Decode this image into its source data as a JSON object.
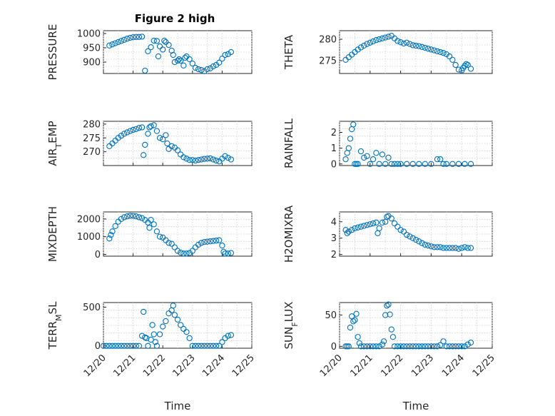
{
  "figure": {
    "title": "Figure 2 high",
    "xlabel": "Time"
  },
  "chart_data": [
    {
      "type": "scatter",
      "name": "PRESSURE",
      "ylabel": "PRESSURE",
      "xlim": [
        0,
        5
      ],
      "ylim": [
        860,
        1010
      ],
      "yticks": [
        900,
        950,
        1000
      ],
      "xticks": [],
      "x": [
        0.2,
        0.3,
        0.4,
        0.5,
        0.6,
        0.7,
        0.8,
        0.9,
        1.0,
        1.1,
        1.2,
        1.3,
        1.4,
        1.5,
        1.6,
        1.7,
        1.8,
        1.85,
        1.9,
        2.0,
        2.05,
        2.1,
        2.2,
        2.3,
        2.35,
        2.4,
        2.5,
        2.55,
        2.6,
        2.7,
        2.75,
        2.8,
        2.9,
        3.0,
        3.1,
        3.2,
        3.3,
        3.4,
        3.5,
        3.6,
        3.7,
        3.8,
        3.9,
        4.0,
        4.1,
        4.2,
        4.3
      ],
      "y": [
        958,
        962,
        966,
        970,
        974,
        978,
        982,
        985,
        987,
        988,
        988,
        989,
        870,
        938,
        952,
        975,
        974,
        920,
        955,
        944,
        975,
        970,
        960,
        940,
        925,
        900,
        905,
        910,
        905,
        888,
        915,
        920,
        910,
        895,
        880,
        875,
        872,
        868,
        875,
        878,
        885,
        890,
        898,
        912,
        925,
        928,
        935
      ]
    },
    {
      "type": "scatter",
      "name": "THETA",
      "ylabel": "THETA",
      "xlim": [
        0,
        5
      ],
      "ylim": [
        272,
        282
      ],
      "yticks": [
        275,
        280
      ],
      "xticks": [],
      "x": [
        0.2,
        0.3,
        0.4,
        0.5,
        0.6,
        0.7,
        0.8,
        0.9,
        1.0,
        1.1,
        1.2,
        1.3,
        1.4,
        1.5,
        1.6,
        1.7,
        1.8,
        1.9,
        2.0,
        2.1,
        2.2,
        2.3,
        2.4,
        2.5,
        2.6,
        2.7,
        2.8,
        2.9,
        3.0,
        3.1,
        3.2,
        3.3,
        3.4,
        3.5,
        3.6,
        3.7,
        3.8,
        3.9,
        4.0,
        4.05,
        4.1,
        4.15,
        4.2,
        4.3
      ],
      "y": [
        275.2,
        275.8,
        276.4,
        277.0,
        277.6,
        278.1,
        278.5,
        278.9,
        279.2,
        279.5,
        279.8,
        280.0,
        280.2,
        280.4,
        280.6,
        280.8,
        280.2,
        279.6,
        279.3,
        279.0,
        279.2,
        278.9,
        278.6,
        278.5,
        278.4,
        278.2,
        278.0,
        277.8,
        277.6,
        277.4,
        277.2,
        277.0,
        276.8,
        276.5,
        276.0,
        275.2,
        274.0,
        272.9,
        272.7,
        273.3,
        273.8,
        274.2,
        274.0,
        273.1
      ]
    },
    {
      "type": "scatter",
      "name": "AIR_TEMP",
      "ylabel": "AIR_TEMP",
      "xlim": [
        0,
        5
      ],
      "ylim": [
        265,
        281
      ],
      "yticks": [
        270,
        275,
        280
      ],
      "xticks": [],
      "x": [
        0.2,
        0.3,
        0.4,
        0.5,
        0.6,
        0.7,
        0.8,
        0.9,
        1.0,
        1.1,
        1.2,
        1.3,
        1.35,
        1.4,
        1.5,
        1.55,
        1.6,
        1.7,
        1.8,
        1.9,
        2.0,
        2.1,
        2.15,
        2.2,
        2.3,
        2.4,
        2.5,
        2.6,
        2.7,
        2.8,
        2.9,
        3.0,
        3.1,
        3.2,
        3.3,
        3.4,
        3.5,
        3.6,
        3.7,
        3.8,
        3.9,
        4.0,
        4.1,
        4.2,
        4.3
      ],
      "y": [
        272.0,
        273.0,
        274.0,
        275.0,
        275.8,
        276.5,
        277.0,
        277.5,
        277.9,
        278.2,
        278.6,
        278.8,
        268.8,
        272.5,
        276.5,
        278.8,
        279.2,
        279.6,
        277.5,
        275.0,
        274.5,
        276.0,
        273.0,
        271.0,
        272.0,
        271.5,
        270.5,
        269.0,
        268.0,
        267.5,
        267.0,
        267.0,
        266.8,
        267.0,
        267.2,
        267.4,
        267.5,
        267.6,
        267.2,
        266.8,
        266.5,
        267.5,
        268.4,
        267.8,
        267.2
      ]
    },
    {
      "type": "scatter",
      "name": "RAINFALL",
      "ylabel": "RAINFALL",
      "xlim": [
        0,
        5
      ],
      "ylim": [
        -0.1,
        2.7
      ],
      "yticks": [
        0,
        1,
        2
      ],
      "xticks": [],
      "x": [
        0.2,
        0.25,
        0.3,
        0.35,
        0.4,
        0.45,
        0.5,
        0.55,
        0.6,
        0.7,
        0.8,
        0.9,
        1.0,
        1.1,
        1.2,
        1.3,
        1.4,
        1.5,
        1.6,
        1.7,
        1.8,
        1.9,
        2.0,
        2.2,
        2.4,
        2.6,
        2.8,
        3.0,
        3.2,
        3.3,
        3.4,
        3.5,
        3.7,
        3.9,
        4.1,
        4.3
      ],
      "y": [
        0.3,
        0.7,
        1.0,
        1.6,
        2.2,
        2.5,
        0,
        0,
        0,
        0.8,
        0.4,
        0.5,
        0,
        0.3,
        0.7,
        0,
        0.6,
        0,
        0.4,
        0,
        0,
        0,
        0,
        0,
        0,
        0,
        0,
        0,
        0.3,
        0.3,
        0,
        0,
        0,
        0,
        0,
        0
      ]
    },
    {
      "type": "scatter",
      "name": "MIXDEPTH",
      "ylabel": "MIXDEPTH",
      "xlim": [
        0,
        5
      ],
      "ylim": [
        -100,
        2400
      ],
      "yticks": [
        0,
        1000,
        2000
      ],
      "xticks": [],
      "x": [
        0.2,
        0.25,
        0.3,
        0.4,
        0.5,
        0.6,
        0.7,
        0.8,
        0.9,
        1.0,
        1.1,
        1.2,
        1.3,
        1.4,
        1.5,
        1.55,
        1.6,
        1.7,
        1.8,
        1.9,
        2.0,
        2.1,
        2.2,
        2.3,
        2.4,
        2.5,
        2.6,
        2.7,
        2.8,
        2.9,
        3.0,
        3.1,
        3.2,
        3.3,
        3.4,
        3.5,
        3.6,
        3.7,
        3.8,
        3.9,
        4.0,
        4.05,
        4.1,
        4.2,
        4.3
      ],
      "y": [
        900,
        1100,
        1300,
        1600,
        1850,
        2000,
        2100,
        2150,
        2180,
        2180,
        2150,
        2100,
        2050,
        1950,
        1800,
        1500,
        1950,
        1700,
        1300,
        1000,
        950,
        800,
        650,
        600,
        400,
        200,
        100,
        50,
        50,
        80,
        200,
        400,
        550,
        650,
        700,
        720,
        740,
        760,
        780,
        800,
        500,
        150,
        50,
        50,
        80
      ]
    },
    {
      "type": "scatter",
      "name": "H2OMIXRA",
      "ylabel": "H2OMIXRA",
      "xlim": [
        0,
        5
      ],
      "ylim": [
        1.9,
        4.6
      ],
      "yticks": [
        2,
        3,
        4
      ],
      "xticks": [],
      "x": [
        0.2,
        0.25,
        0.3,
        0.4,
        0.5,
        0.6,
        0.7,
        0.8,
        0.9,
        1.0,
        1.1,
        1.2,
        1.25,
        1.3,
        1.4,
        1.5,
        1.55,
        1.6,
        1.7,
        1.8,
        1.9,
        2.0,
        2.1,
        2.2,
        2.3,
        2.4,
        2.5,
        2.6,
        2.7,
        2.8,
        2.9,
        3.0,
        3.1,
        3.2,
        3.3,
        3.4,
        3.5,
        3.6,
        3.7,
        3.8,
        3.9,
        4.0,
        4.1,
        4.2,
        4.3
      ],
      "y": [
        3.5,
        3.3,
        3.4,
        3.5,
        3.6,
        3.65,
        3.7,
        3.75,
        3.8,
        3.85,
        3.9,
        3.95,
        3.3,
        3.6,
        3.95,
        4.0,
        4.3,
        4.35,
        4.2,
        3.9,
        3.7,
        3.5,
        3.4,
        3.2,
        3.1,
        3.0,
        2.9,
        2.8,
        2.7,
        2.6,
        2.55,
        2.5,
        2.45,
        2.45,
        2.45,
        2.4,
        2.4,
        2.4,
        2.4,
        2.4,
        2.35,
        2.4,
        2.45,
        2.4,
        2.4
      ]
    },
    {
      "type": "scatter",
      "name": "TERR_MSL",
      "ylabel": "TERR_MSL",
      "xlim": [
        0,
        5
      ],
      "ylim": [
        -30,
        560
      ],
      "yticks": [
        0,
        500
      ],
      "xticks": [
        "12/20",
        "12/21",
        "12/22",
        "12/23",
        "12/24",
        "12/25"
      ],
      "x": [
        0.0,
        0.1,
        0.2,
        0.3,
        0.4,
        0.5,
        0.6,
        0.7,
        0.8,
        0.9,
        1.0,
        1.1,
        1.2,
        1.3,
        1.35,
        1.4,
        1.45,
        1.5,
        1.6,
        1.65,
        1.7,
        1.75,
        1.8,
        1.9,
        2.0,
        2.1,
        2.2,
        2.3,
        2.35,
        2.4,
        2.5,
        2.6,
        2.7,
        2.8,
        2.9,
        3.0,
        3.1,
        3.2,
        3.3,
        3.4,
        3.5,
        3.6,
        3.7,
        3.8,
        3.9,
        4.0,
        4.1,
        4.2,
        4.3
      ],
      "y": [
        0,
        0,
        0,
        0,
        0,
        0,
        0,
        0,
        0,
        0,
        0,
        0,
        0,
        130,
        440,
        110,
        100,
        0,
        80,
        270,
        150,
        50,
        0,
        150,
        250,
        320,
        420,
        460,
        520,
        400,
        340,
        270,
        220,
        180,
        100,
        0,
        0,
        0,
        0,
        0,
        0,
        0,
        0,
        0,
        0,
        50,
        100,
        130,
        140
      ]
    },
    {
      "type": "scatter",
      "name": "SUN_FLUX",
      "ylabel": "SUN_FLUX",
      "xlim": [
        0,
        5
      ],
      "ylim": [
        -3,
        70
      ],
      "yticks": [
        0,
        50
      ],
      "xticks": [
        "12/20",
        "12/21",
        "12/22",
        "12/23",
        "12/24",
        "12/25"
      ],
      "x": [
        0.2,
        0.25,
        0.3,
        0.35,
        0.4,
        0.45,
        0.5,
        0.55,
        0.6,
        0.65,
        0.7,
        0.8,
        0.9,
        1.0,
        1.1,
        1.2,
        1.3,
        1.4,
        1.45,
        1.5,
        1.55,
        1.6,
        1.65,
        1.7,
        1.75,
        1.8,
        1.9,
        2.0,
        2.1,
        2.2,
        2.3,
        2.4,
        2.5,
        2.6,
        2.7,
        2.8,
        2.9,
        3.0,
        3.1,
        3.2,
        3.3,
        3.4,
        3.5,
        3.6,
        3.7,
        3.8,
        3.9,
        4.0,
        4.1,
        4.2,
        4.3
      ],
      "y": [
        0,
        0,
        0,
        30,
        48,
        40,
        42,
        52,
        15,
        5,
        0,
        0,
        0,
        0,
        0,
        0,
        0,
        3,
        8,
        50,
        65,
        67,
        51,
        27,
        15,
        0,
        0,
        0,
        0,
        0,
        0,
        0,
        0,
        0,
        0,
        0,
        0,
        0,
        0,
        0,
        2,
        8,
        0,
        0,
        0,
        0,
        0,
        0,
        0,
        3,
        6
      ]
    }
  ]
}
